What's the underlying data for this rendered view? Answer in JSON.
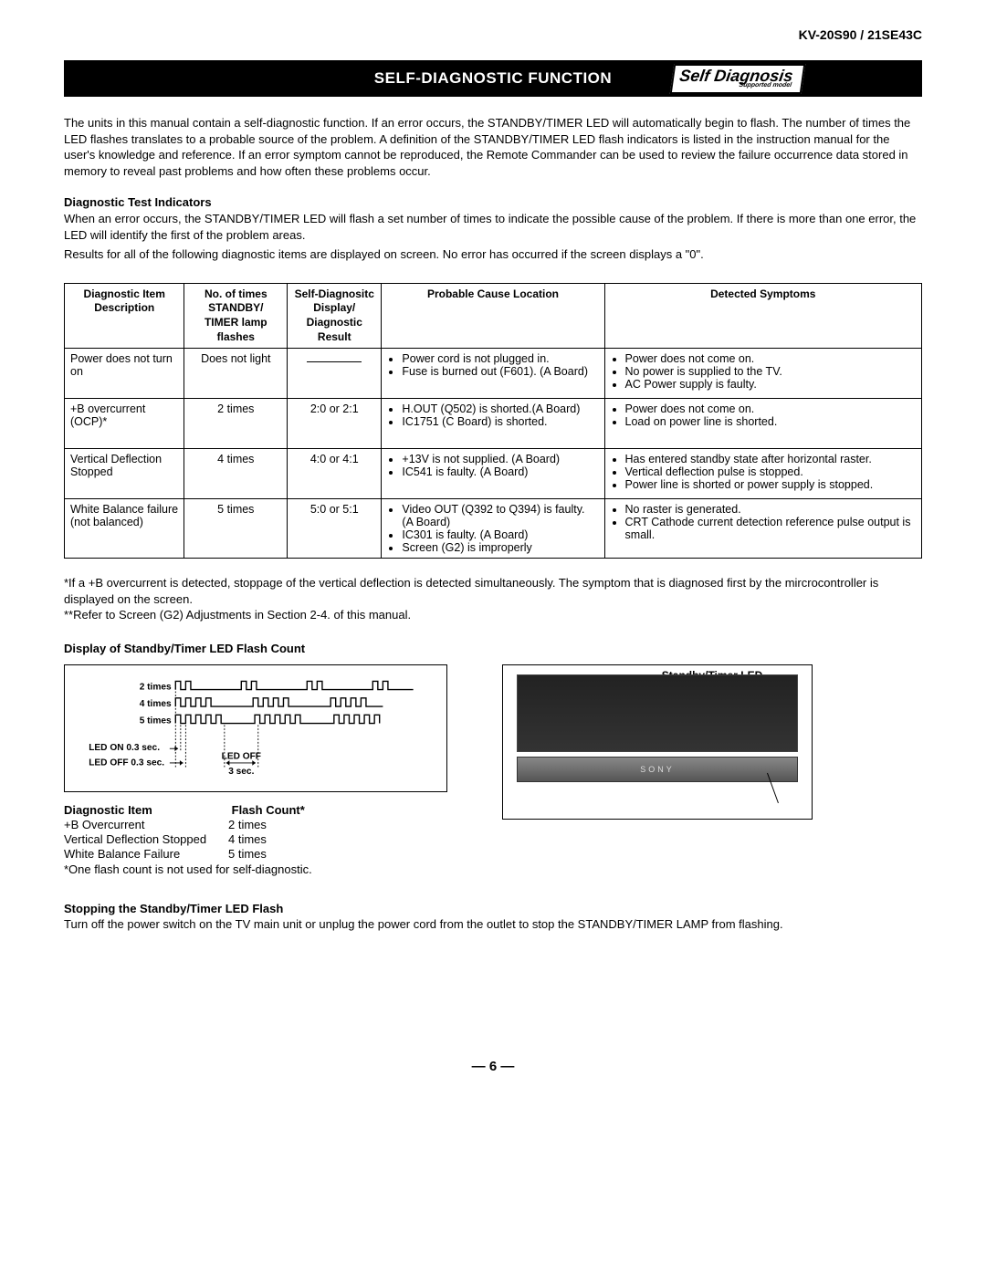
{
  "model_header": "KV-20S90 / 21SE43C",
  "title_bar": "SELF-DIAGNOSTIC FUNCTION",
  "badge": {
    "main": "Self Diagnosis",
    "sub": "Supported model"
  },
  "intro_paragraph": "The units in this manual contain a self-diagnostic function. If an error occurs, the STANDBY/TIMER LED will automatically begin to flash. The number of times the LED flashes translates to a probable source of the problem. A definition of the STANDBY/TIMER LED flash indicators is listed in the instruction manual for the user's knowledge and reference. If an error symptom cannot be reproduced, the Remote Commander can be used to review the failure occurrence data stored in memory to reveal past problems and how often these problems occur.",
  "diag_test": {
    "heading": "Diagnostic Test Indicators",
    "p1": "When an error occurs, the STANDBY/TIMER LED will flash a set number of times to indicate the possible cause of the problem. If there is more than one error, the LED will identify the first of the problem areas.",
    "p2": "Results for all of the following diagnostic items are displayed on screen.  No error has occurred if the screen displays a \"0\"."
  },
  "table": {
    "headers": [
      "Diagnostic Item Description",
      "No. of times STANDBY/ TIMER lamp flashes",
      "Self-Diagnositc Display/ Diagnostic Result",
      "Probable Cause Location",
      "Detected Symptoms"
    ],
    "rows": [
      {
        "desc": "Power does not turn on",
        "flashes": "Does not light",
        "result": "",
        "cause": [
          "Power cord is not plugged in.",
          "Fuse is burned out (F601). (A Board)"
        ],
        "symptoms": [
          "Power does not come on.",
          "No power is supplied to the TV.",
          "AC Power supply is faulty."
        ]
      },
      {
        "desc": "+B overcurrent (OCP)*",
        "flashes": "2 times",
        "result": "2:0 or 2:1",
        "cause": [
          "H.OUT (Q502) is shorted.(A Board)",
          "IC1751 (C Board) is shorted."
        ],
        "symptoms": [
          "Power does not come on.",
          "Load on power line is shorted."
        ]
      },
      {
        "desc": "Vertical Deflection Stopped",
        "flashes": "4 times",
        "result": "4:0 or 4:1",
        "cause": [
          "+13V is not supplied. (A Board)",
          "IC541 is faulty. (A Board)"
        ],
        "symptoms": [
          "Has entered standby state after horizontal raster.",
          "Vertical deflection pulse is stopped.",
          "Power line is shorted or power supply is stopped."
        ]
      },
      {
        "desc": "White Balance failure (not balanced)",
        "flashes": "5 times",
        "result": "5:0 or 5:1",
        "cause": [
          "Video OUT (Q392 to Q394) is faulty. (A Board)",
          "IC301 is faulty.  (A Board)",
          "Screen (G2) is improperly"
        ],
        "symptoms": [
          "No raster is generated.",
          "CRT Cathode current detection reference pulse output is small."
        ]
      }
    ]
  },
  "footnotes": {
    "f1": "*If a +B overcurrent is detected, stoppage of the vertical deflection is detected simultaneously.  The symptom that is diagnosed first by the mircrocontroller is displayed on the screen.",
    "f2": "**Refer to Screen (G2) Adjustments in Section 2-4. of this manual."
  },
  "flash_display": {
    "heading": "Display of Standby/Timer LED Flash Count",
    "timing_labels": {
      "r2": "2 times",
      "r4": "4 times",
      "r5": "5 times",
      "led_on": "LED ON 0.3 sec.",
      "led_off": "LED OFF 0.3 sec.",
      "off3": "LED OFF",
      "off3b": "3 sec."
    },
    "table_header": {
      "c1": "Diagnostic Item",
      "c2": "Flash Count*"
    },
    "rows": [
      {
        "item": "+B Overcurrent",
        "count": "2 times"
      },
      {
        "item": "Vertical Deflection Stopped",
        "count": "4 times"
      },
      {
        "item": "White Balance Failure",
        "count": "5 times"
      }
    ],
    "note": "*One flash count is not used for self-diagnostic."
  },
  "tv_illustration": {
    "brand": "SONY",
    "led_label": "Standby/Timer LED"
  },
  "stopping": {
    "heading": "Stopping the Standby/Timer LED Flash",
    "text": "Turn off the power switch on the TV main unit or unplug the power cord from the outlet to stop the STANDBY/TIMER LAMP from flashing."
  },
  "page_number": "— 6 —",
  "styling": {
    "page_bg": "#ffffff",
    "text_color": "#000000",
    "titlebar_bg": "#000000",
    "titlebar_fg": "#ffffff",
    "border_color": "#000000",
    "body_fontsize": 13,
    "table_fontsize": 12.5,
    "title_fontsize": 17
  }
}
